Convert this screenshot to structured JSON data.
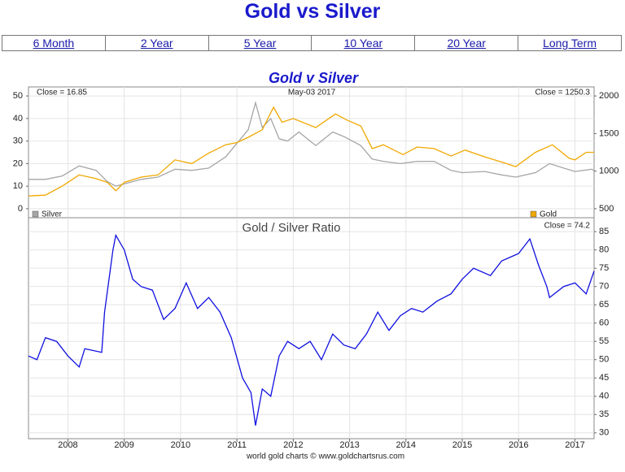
{
  "header": {
    "title": "Gold vs Silver"
  },
  "nav": {
    "tabs": [
      "6 Month",
      "2 Year",
      "5 Year",
      "10 Year",
      "20 Year",
      "Long Term"
    ]
  },
  "chart_data": [
    {
      "type": "line",
      "title": "Gold v Silver",
      "annotations": [
        "Close = 16.85",
        "May-03 2017",
        "Close = 1250.3"
      ],
      "xlim": [
        2007.3,
        2017.34
      ],
      "ylim": [
        -4,
        54
      ],
      "yticks": [
        0,
        10,
        20,
        30,
        40,
        50
      ],
      "y2lim": [
        380,
        2120
      ],
      "y2ticks": [
        500,
        1000,
        1500,
        2000
      ],
      "yaxis_position": "left",
      "grid": true,
      "series": [
        {
          "name": "Silver",
          "color": "#a6a6a6",
          "axis": "y",
          "x": [
            2007.3,
            2007.6,
            2007.9,
            2008.2,
            2008.5,
            2008.7,
            2008.85,
            2009.0,
            2009.3,
            2009.6,
            2009.9,
            2010.2,
            2010.5,
            2010.8,
            2011.0,
            2011.2,
            2011.33,
            2011.45,
            2011.6,
            2011.75,
            2011.9,
            2012.1,
            2012.4,
            2012.7,
            2012.9,
            2013.2,
            2013.4,
            2013.6,
            2013.9,
            2014.2,
            2014.5,
            2014.8,
            2015.0,
            2015.4,
            2015.7,
            2015.95,
            2016.3,
            2016.55,
            2016.8,
            2017.0,
            2017.3,
            2017.34
          ],
          "values": [
            13,
            13,
            14.5,
            19,
            17,
            12,
            10,
            11,
            13,
            14,
            17.5,
            17,
            18,
            23,
            29,
            35,
            47,
            36,
            40,
            31,
            30,
            34,
            28,
            34,
            32,
            28,
            22,
            21,
            20,
            21,
            21,
            17,
            16,
            16.5,
            15,
            14,
            16,
            20,
            18,
            16.5,
            17.5,
            16.85
          ]
        },
        {
          "name": "Gold",
          "color": "#f0a800",
          "axis": "y2",
          "x": [
            2007.3,
            2007.6,
            2007.9,
            2008.2,
            2008.5,
            2008.7,
            2008.85,
            2009.0,
            2009.3,
            2009.6,
            2009.9,
            2010.2,
            2010.5,
            2010.8,
            2011.0,
            2011.2,
            2011.45,
            2011.65,
            2011.8,
            2012.0,
            2012.4,
            2012.75,
            2012.95,
            2013.2,
            2013.4,
            2013.6,
            2013.95,
            2014.2,
            2014.5,
            2014.8,
            2015.05,
            2015.4,
            2015.7,
            2015.95,
            2016.3,
            2016.6,
            2016.9,
            2017.0,
            2017.2,
            2017.34
          ],
          "values": [
            670,
            680,
            800,
            950,
            900,
            850,
            740,
            850,
            920,
            950,
            1150,
            1100,
            1240,
            1350,
            1380,
            1450,
            1550,
            1850,
            1650,
            1700,
            1580,
            1760,
            1680,
            1600,
            1300,
            1350,
            1220,
            1320,
            1300,
            1200,
            1280,
            1190,
            1120,
            1060,
            1250,
            1350,
            1170,
            1150,
            1250,
            1250.3
          ]
        }
      ]
    },
    {
      "type": "line",
      "title": "Gold / Silver Ratio",
      "annotations": [
        "Close = 74.2"
      ],
      "source": "world gold charts © www.goldchartsrus.com",
      "xlim": [
        2007.3,
        2017.34
      ],
      "xticks": [
        2008,
        2009,
        2010,
        2011,
        2012,
        2013,
        2014,
        2015,
        2016,
        2017
      ],
      "ylim": [
        28.4,
        88.8
      ],
      "yticks": [
        30,
        35,
        40,
        45,
        50,
        55,
        60,
        65,
        70,
        75,
        80,
        85
      ],
      "yaxis_position": "right",
      "grid": true,
      "series": [
        {
          "name": "Gold / Silver Ratio",
          "color": "#1010e0",
          "axis": "y",
          "x": [
            2007.3,
            2007.45,
            2007.6,
            2007.8,
            2008.0,
            2008.2,
            2008.3,
            2008.6,
            2008.65,
            2008.8,
            2008.85,
            2009.0,
            2009.15,
            2009.3,
            2009.5,
            2009.7,
            2009.9,
            2010.1,
            2010.3,
            2010.5,
            2010.7,
            2010.9,
            2011.1,
            2011.25,
            2011.33,
            2011.45,
            2011.6,
            2011.75,
            2011.9,
            2012.1,
            2012.3,
            2012.5,
            2012.7,
            2012.9,
            2013.1,
            2013.3,
            2013.5,
            2013.7,
            2013.9,
            2014.1,
            2014.3,
            2014.55,
            2014.8,
            2015.0,
            2015.2,
            2015.5,
            2015.7,
            2016.0,
            2016.2,
            2016.35,
            2016.5,
            2016.55,
            2016.8,
            2017.0,
            2017.2,
            2017.34
          ],
          "values": [
            51,
            50,
            56,
            55,
            51,
            48,
            53,
            52,
            63,
            80,
            84,
            80,
            72,
            70,
            69,
            61,
            64,
            71,
            64,
            67,
            63,
            56,
            45,
            41,
            32,
            42,
            40,
            51,
            55,
            53,
            55,
            50,
            57,
            54,
            53,
            57,
            63,
            58,
            62,
            64,
            63,
            66,
            68,
            72,
            75,
            73,
            77,
            79,
            83,
            76,
            70,
            67,
            70,
            71,
            68,
            74.2
          ]
        }
      ]
    }
  ]
}
